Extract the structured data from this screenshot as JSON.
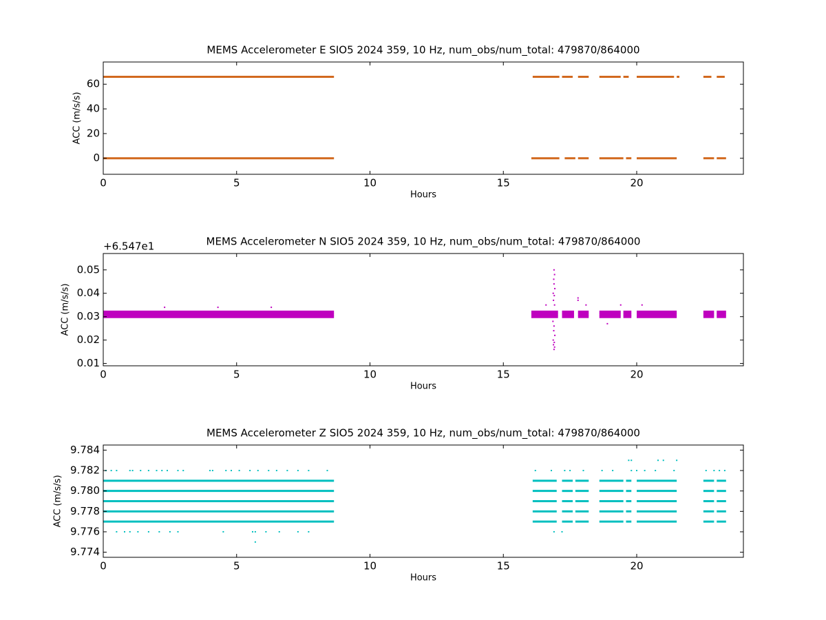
{
  "chart_data": [
    {
      "type": "scatter",
      "title": "MEMS Accelerometer E SIO5 2024 359, 10 Hz, num_obs/num_total: 479870/864000",
      "xlabel": "Hours",
      "ylabel": "ACC (m/s/s)",
      "color": "#d2691e",
      "xlim": [
        0,
        24
      ],
      "xticks": [
        0,
        5,
        10,
        15,
        20
      ],
      "ylim": [
        -13,
        78
      ],
      "yticks": [
        0,
        20,
        40,
        60
      ],
      "bands": [
        {
          "y": 66,
          "x": [
            [
              0,
              8.65
            ],
            [
              16.1,
              17.1
            ],
            [
              17.2,
              17.6
            ],
            [
              17.8,
              18.2
            ],
            [
              18.6,
              19.4
            ],
            [
              19.5,
              19.7
            ],
            [
              20,
              21.4
            ],
            [
              21.5,
              21.6
            ],
            [
              22.5,
              22.8
            ],
            [
              23,
              23.3
            ]
          ]
        },
        {
          "y": 0,
          "x": [
            [
              0,
              8.65
            ],
            [
              16.05,
              17.1
            ],
            [
              17.3,
              17.7
            ],
            [
              17.8,
              18.2
            ],
            [
              18.6,
              19.5
            ],
            [
              19.6,
              19.8
            ],
            [
              20,
              21.5
            ],
            [
              22.5,
              22.9
            ],
            [
              23,
              23.35
            ]
          ]
        }
      ],
      "points": {
        "x": [],
        "values": []
      }
    },
    {
      "type": "scatter",
      "title": "MEMS Accelerometer N SIO5 2024 359, 10 Hz, num_obs/num_total: 479870/864000",
      "xlabel": "Hours",
      "ylabel": "ACC (m/s/s)",
      "color": "#bf00bf",
      "offset_text": "+6.547e1",
      "xlim": [
        0,
        24
      ],
      "xticks": [
        0,
        5,
        10,
        15,
        20
      ],
      "ylim": [
        0.009,
        0.057
      ],
      "yticks": [
        0.01,
        0.02,
        0.03,
        0.04,
        0.05
      ],
      "bands": [
        {
          "y": 0.03,
          "x": [
            [
              0,
              8.65
            ],
            [
              16.05,
              17.05
            ],
            [
              17.2,
              17.65
            ],
            [
              17.8,
              18.2
            ],
            [
              18.6,
              19.4
            ],
            [
              19.5,
              19.8
            ],
            [
              20,
              21.5
            ],
            [
              22.5,
              22.9
            ],
            [
              23,
              23.35
            ]
          ]
        },
        {
          "y": 0.031,
          "x": [
            [
              0,
              8.65
            ],
            [
              16.05,
              17.05
            ],
            [
              17.2,
              17.65
            ],
            [
              17.8,
              18.2
            ],
            [
              18.6,
              19.4
            ],
            [
              19.5,
              19.8
            ],
            [
              20,
              21.5
            ],
            [
              22.5,
              22.9
            ],
            [
              23,
              23.35
            ]
          ]
        },
        {
          "y": 0.032,
          "x": [
            [
              0,
              8.65
            ],
            [
              16.05,
              17.05
            ],
            [
              17.2,
              17.65
            ],
            [
              17.8,
              18.2
            ],
            [
              18.6,
              19.4
            ],
            [
              19.5,
              19.8
            ],
            [
              20,
              21.5
            ],
            [
              22.5,
              22.9
            ],
            [
              23,
              23.35
            ]
          ]
        }
      ],
      "points": {
        "x": [
          16.9,
          16.92,
          16.88,
          16.91,
          16.87,
          16.93,
          16.89,
          16.9,
          16.86,
          16.92,
          16.88,
          16.91,
          16.87,
          16.93,
          16.9,
          16.89,
          16.92,
          16.9,
          2.3,
          4.3,
          6.3,
          17.8,
          17.8,
          18.1,
          19.4,
          18.9,
          20.2,
          16.6
        ],
        "values": [
          0.016,
          0.017,
          0.018,
          0.019,
          0.02,
          0.022,
          0.024,
          0.026,
          0.028,
          0.035,
          0.037,
          0.039,
          0.04,
          0.042,
          0.044,
          0.046,
          0.048,
          0.05,
          0.034,
          0.034,
          0.034,
          0.038,
          0.037,
          0.035,
          0.035,
          0.027,
          0.035,
          0.035
        ]
      }
    },
    {
      "type": "scatter",
      "title": "MEMS Accelerometer Z SIO5 2024 359, 10 Hz, num_obs/num_total: 479870/864000",
      "xlabel": "Hours",
      "ylabel": "ACC (m/s/s)",
      "color": "#00bfbf",
      "xlim": [
        0,
        24
      ],
      "xticks": [
        0,
        5,
        10,
        15,
        20
      ],
      "ylim": [
        9.7735,
        9.7845
      ],
      "yticks": [
        9.774,
        9.776,
        9.778,
        9.78,
        9.782,
        9.784
      ],
      "ytick_labels": [
        "9.774",
        "9.776",
        "9.778",
        "9.780",
        "9.782",
        "9.784"
      ],
      "bands": [
        {
          "y": 9.781,
          "x": [
            [
              0,
              8.65
            ],
            [
              16.1,
              17
            ],
            [
              17.2,
              17.6
            ],
            [
              17.7,
              18.2
            ],
            [
              18.6,
              19.5
            ],
            [
              19.6,
              19.8
            ],
            [
              20,
              21.5
            ],
            [
              22.5,
              22.9
            ],
            [
              23,
              23.35
            ]
          ]
        },
        {
          "y": 9.78,
          "x": [
            [
              0,
              8.65
            ],
            [
              16.1,
              17
            ],
            [
              17.2,
              17.6
            ],
            [
              17.7,
              18.2
            ],
            [
              18.6,
              19.5
            ],
            [
              19.6,
              19.8
            ],
            [
              20,
              21.5
            ],
            [
              22.5,
              22.9
            ],
            [
              23,
              23.35
            ]
          ]
        },
        {
          "y": 9.779,
          "x": [
            [
              0,
              8.65
            ],
            [
              16.1,
              17
            ],
            [
              17.2,
              17.6
            ],
            [
              17.7,
              18.2
            ],
            [
              18.6,
              19.5
            ],
            [
              19.6,
              19.8
            ],
            [
              20,
              21.5
            ],
            [
              22.5,
              22.9
            ],
            [
              23,
              23.35
            ]
          ]
        },
        {
          "y": 9.778,
          "x": [
            [
              0,
              8.65
            ],
            [
              16.1,
              17
            ],
            [
              17.2,
              17.6
            ],
            [
              17.7,
              18.2
            ],
            [
              18.6,
              19.5
            ],
            [
              19.6,
              19.8
            ],
            [
              20,
              21.5
            ],
            [
              22.5,
              22.9
            ],
            [
              23,
              23.35
            ]
          ]
        },
        {
          "y": 9.777,
          "x": [
            [
              0,
              8.65
            ],
            [
              16.1,
              17
            ],
            [
              17.2,
              17.6
            ],
            [
              17.7,
              18.2
            ],
            [
              18.6,
              19.5
            ],
            [
              19.6,
              19.8
            ],
            [
              20,
              21.5
            ],
            [
              22.5,
              22.9
            ],
            [
              23,
              23.35
            ]
          ]
        }
      ],
      "points": {
        "x": [
          0.1,
          0.3,
          0.5,
          1.0,
          1.1,
          1.4,
          1.7,
          2.0,
          2.2,
          2.4,
          2.8,
          3.0,
          4.0,
          4.1,
          4.6,
          4.8,
          5.1,
          5.5,
          5.8,
          6.2,
          6.5,
          6.9,
          7.3,
          7.7,
          8.4,
          16.2,
          16.8,
          17.3,
          17.5,
          18.0,
          18.7,
          19.1,
          19.8,
          20.0,
          20.3,
          20.7,
          21.4,
          22.6,
          22.9,
          23.1,
          23.3,
          0.5,
          0.8,
          1.0,
          1.3,
          1.7,
          2.1,
          2.5,
          2.8,
          4.5,
          5.6,
          5.7,
          6.1,
          6.6,
          7.3,
          7.7,
          16.9,
          17.2,
          5.7,
          19.7,
          19.8,
          20.8,
          21.0,
          21.5
        ],
        "values": [
          9.782,
          9.782,
          9.782,
          9.782,
          9.782,
          9.782,
          9.782,
          9.782,
          9.782,
          9.782,
          9.782,
          9.782,
          9.782,
          9.782,
          9.782,
          9.782,
          9.782,
          9.782,
          9.782,
          9.782,
          9.782,
          9.782,
          9.782,
          9.782,
          9.782,
          9.782,
          9.782,
          9.782,
          9.782,
          9.782,
          9.782,
          9.782,
          9.782,
          9.782,
          9.782,
          9.782,
          9.782,
          9.782,
          9.782,
          9.782,
          9.782,
          9.776,
          9.776,
          9.776,
          9.776,
          9.776,
          9.776,
          9.776,
          9.776,
          9.776,
          9.776,
          9.776,
          9.776,
          9.776,
          9.776,
          9.776,
          9.776,
          9.776,
          9.775,
          9.783,
          9.783,
          9.783,
          9.783,
          9.783
        ]
      }
    }
  ]
}
